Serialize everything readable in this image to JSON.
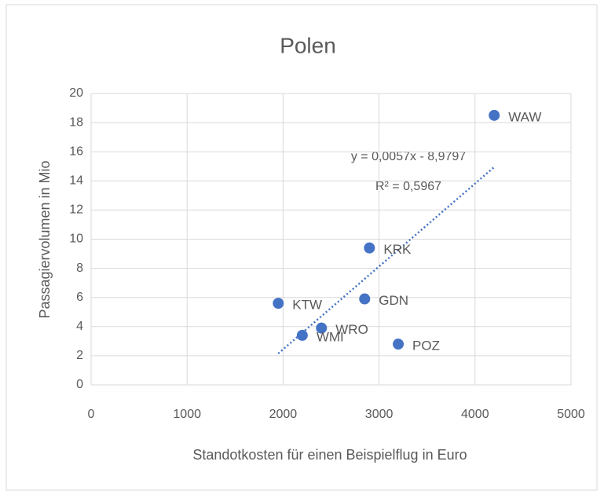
{
  "chart_data": {
    "type": "scatter",
    "title": "Polen",
    "x_label": "Standotkosten für einen Beispielflug in Euro",
    "y_label": "Passagiervolumen in Mio",
    "labels": [
      "WAW",
      "KRK",
      "GDN",
      "KTW",
      "WRO",
      "WMI",
      "POZ"
    ],
    "x": [
      4200,
      2900,
      2850,
      1950,
      2400,
      2200,
      3200
    ],
    "values": [
      18.5,
      9.4,
      5.9,
      5.6,
      3.9,
      3.4,
      2.8
    ],
    "color": "#4472c4",
    "trendline": true,
    "annotations": [
      "y = 0,0057x - 8,9797",
      "R² = 0,5967"
    ],
    "xlim": [
      0,
      5000
    ],
    "xticks": [
      0,
      1000,
      2000,
      3000,
      4000,
      5000
    ],
    "ylim": [
      0,
      20
    ],
    "yticks": [
      0,
      2,
      4,
      6,
      8,
      10,
      12,
      14,
      16,
      18,
      20
    ],
    "grid": true
  }
}
